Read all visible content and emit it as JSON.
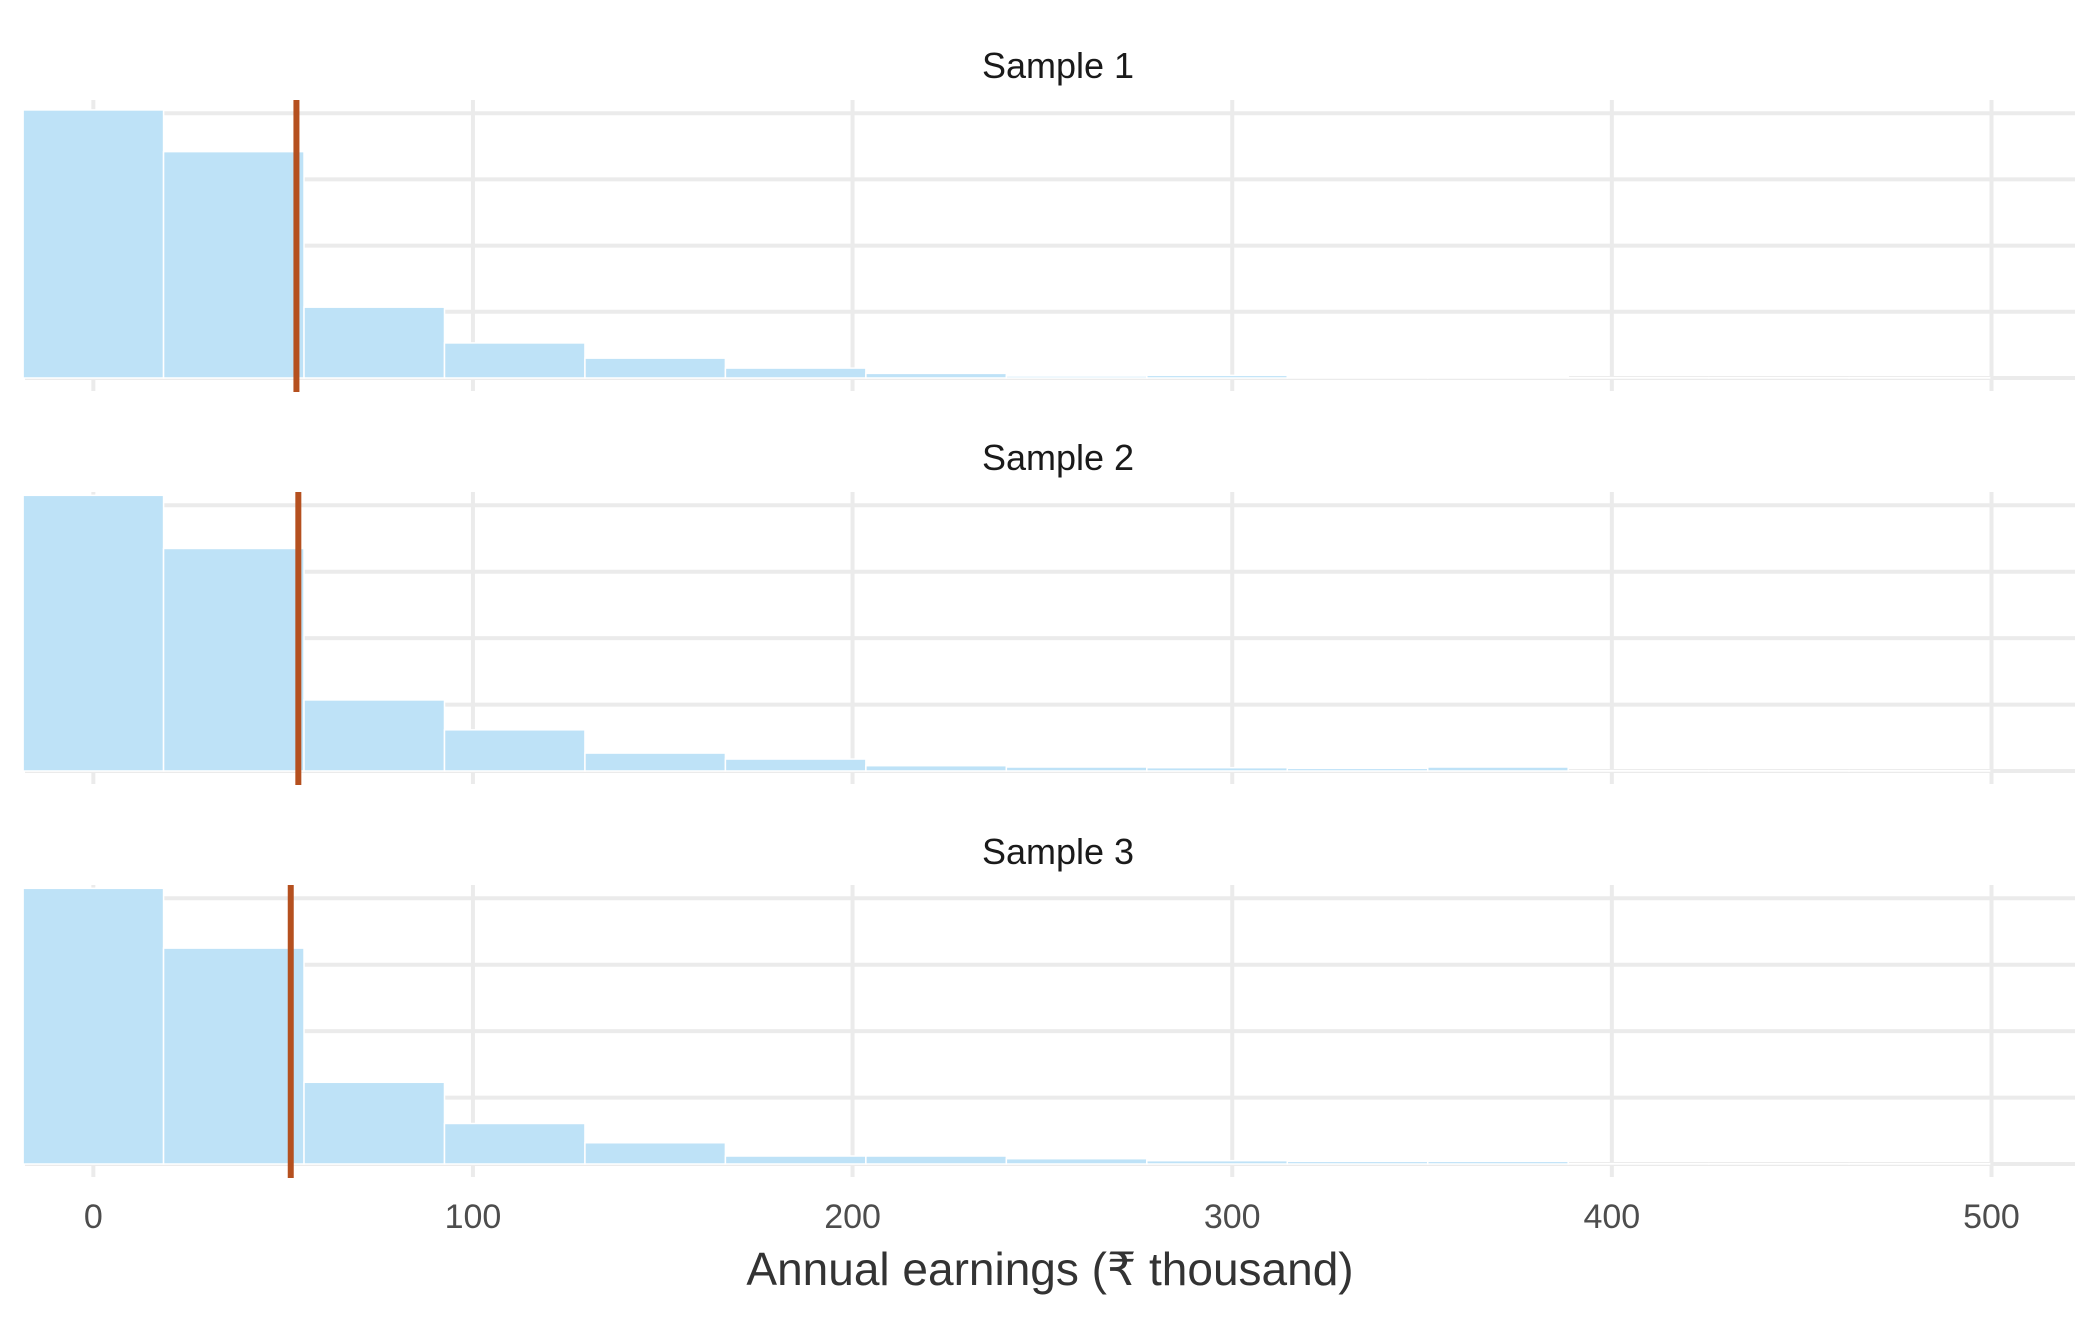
{
  "chart_data": {
    "type": "histogram",
    "layout": "facet-vertical",
    "xlabel": "Annual earnings (₹ thousand)",
    "xlim": [
      -18,
      522
    ],
    "x_ticks": [
      0,
      100,
      200,
      300,
      400,
      500
    ],
    "y_ticks": [
      0,
      1,
      2,
      3,
      4
    ],
    "ylim": [
      0,
      4.2
    ],
    "y_tick_labels_shown": false,
    "grid": true,
    "bin_edges": [
      -18.5,
      18.5,
      55.5,
      92.5,
      129.5,
      166.5,
      203.5,
      240.5,
      277.5,
      314.5,
      351.5,
      388.5,
      425.5,
      462.5,
      499.5
    ],
    "bar_color": "#bee2f7",
    "bar_edge_color": "#ffffff",
    "mean_line_color": "#b5501f",
    "panels": [
      {
        "title": "Sample 1",
        "counts": [
          4.05,
          3.42,
          1.07,
          0.53,
          0.3,
          0.15,
          0.07,
          0.03,
          0.04,
          0.02,
          0.02,
          0.005,
          0.005,
          0.005
        ],
        "mean": 53.5
      },
      {
        "title": "Sample 2",
        "counts": [
          4.15,
          3.35,
          1.07,
          0.62,
          0.27,
          0.18,
          0.08,
          0.06,
          0.05,
          0.04,
          0.06,
          0.005,
          0.005,
          0.005
        ],
        "mean": 54.0
      },
      {
        "title": "Sample 3",
        "counts": [
          4.15,
          3.25,
          1.23,
          0.61,
          0.32,
          0.12,
          0.12,
          0.08,
          0.05,
          0.04,
          0.04,
          0.005,
          0.005,
          0.005
        ],
        "mean": 52.0
      }
    ]
  }
}
